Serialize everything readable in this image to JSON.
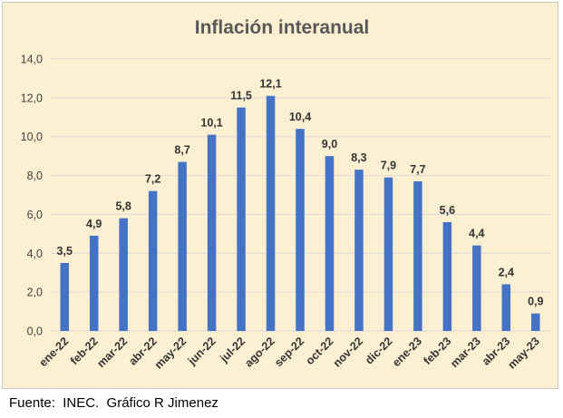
{
  "chart_data": {
    "type": "bar",
    "title": "Inflación interanual",
    "categories": [
      "ene-22",
      "feb-22",
      "mar-22",
      "abr-22",
      "may-22",
      "jun-22",
      "jul-22",
      "ago-22",
      "sep-22",
      "oct-22",
      "nov-22",
      "dic-22",
      "ene-23",
      "feb-23",
      "mar-23",
      "abr-23",
      "may-23"
    ],
    "values": [
      3.5,
      4.9,
      5.8,
      7.2,
      8.7,
      10.1,
      11.5,
      12.1,
      10.4,
      9.0,
      8.3,
      7.9,
      7.7,
      5.6,
      4.4,
      2.4,
      0.9
    ],
    "data_labels": [
      "3,5",
      "4,9",
      "5,8",
      "7,2",
      "8,7",
      "10,1",
      "11,5",
      "12,1",
      "10,4",
      "9,0",
      "8,3",
      "7,9",
      "7,7",
      "5,6",
      "4,4",
      "2,4",
      "0,9"
    ],
    "ylim": [
      0,
      14
    ],
    "yticks": [
      0,
      2,
      4,
      6,
      8,
      10,
      12,
      14
    ],
    "ytick_labels": [
      "0,0",
      "2,0",
      "4,0",
      "6,0",
      "8,0",
      "10,0",
      "12,0",
      "14,0"
    ],
    "xlabel": "",
    "ylabel": "",
    "grid": true,
    "legend": "none",
    "bar_color": "#4472c4",
    "grid_color": "#d9d9d9",
    "background_color": "#fdf0d2"
  },
  "source_note": "Fuente:  INEC.  Gráfico R Jimenez"
}
